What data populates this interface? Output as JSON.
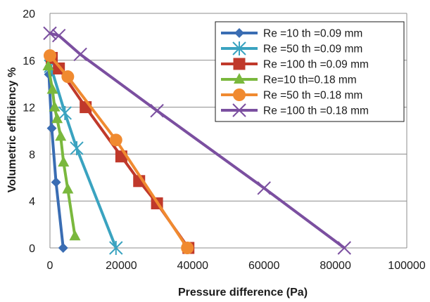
{
  "chart_data": {
    "type": "line",
    "title": "",
    "xlabel": "Pressure difference (Pa)",
    "ylabel": "Volumetric efficiency %",
    "xlim": [
      0,
      100000
    ],
    "ylim": [
      0,
      20
    ],
    "x_ticks": [
      0,
      20000,
      40000,
      60000,
      80000,
      100000
    ],
    "y_ticks": [
      0,
      4,
      8,
      12,
      16,
      20
    ],
    "x_tick_labels": [
      "0",
      "20000",
      "40000",
      "60000",
      "80000",
      "100000"
    ],
    "y_tick_labels": [
      "0",
      "4",
      "8",
      "12",
      "16",
      "20"
    ],
    "grid": "horizontal",
    "legend_position": "top-right",
    "series": [
      {
        "name": "Re =10 th =0.09 mm",
        "color": "#3a6db3",
        "marker": "diamond",
        "points": [
          [
            -300,
            14.8
          ],
          [
            500,
            10.2
          ],
          [
            1700,
            5.6
          ],
          [
            3700,
            0
          ]
        ]
      },
      {
        "name": "Re =50 th =0.09 mm",
        "color": "#3aa3c0",
        "marker": "asterisk",
        "points": [
          [
            200,
            15.5
          ],
          [
            4200,
            11.5
          ],
          [
            7500,
            8.5
          ],
          [
            18500,
            0
          ]
        ]
      },
      {
        "name": "Re =100 th =0.09 mm",
        "color": "#c0392b",
        "marker": "square",
        "points": [
          [
            500,
            16.2
          ],
          [
            2500,
            15.3
          ],
          [
            10000,
            12
          ],
          [
            20000,
            7.8
          ],
          [
            25000,
            5.7
          ],
          [
            30000,
            3.8
          ],
          [
            38800,
            0
          ]
        ]
      },
      {
        "name": "Re=10 th=0.18 mm",
        "color": "#7ab83d",
        "marker": "triangle",
        "points": [
          [
            -500,
            15.5
          ],
          [
            700,
            13.5
          ],
          [
            1300,
            12
          ],
          [
            2000,
            11
          ],
          [
            3000,
            9.5
          ],
          [
            3800,
            7.3
          ],
          [
            5000,
            5
          ],
          [
            7000,
            1
          ]
        ]
      },
      {
        "name": "Re =50 th =0.18 mm",
        "color": "#f08a30",
        "marker": "circle",
        "points": [
          [
            0,
            16.4
          ],
          [
            5000,
            14.6
          ],
          [
            18500,
            9.2
          ],
          [
            38500,
            0
          ]
        ]
      },
      {
        "name": "Re =100 th =0.18 mm",
        "color": "#7b4fa0",
        "marker": "x",
        "points": [
          [
            0,
            18.3
          ],
          [
            2500,
            18.1
          ],
          [
            8500,
            16.5
          ],
          [
            30000,
            11.7
          ],
          [
            60000,
            5.1
          ],
          [
            82500,
            0
          ]
        ]
      }
    ]
  }
}
